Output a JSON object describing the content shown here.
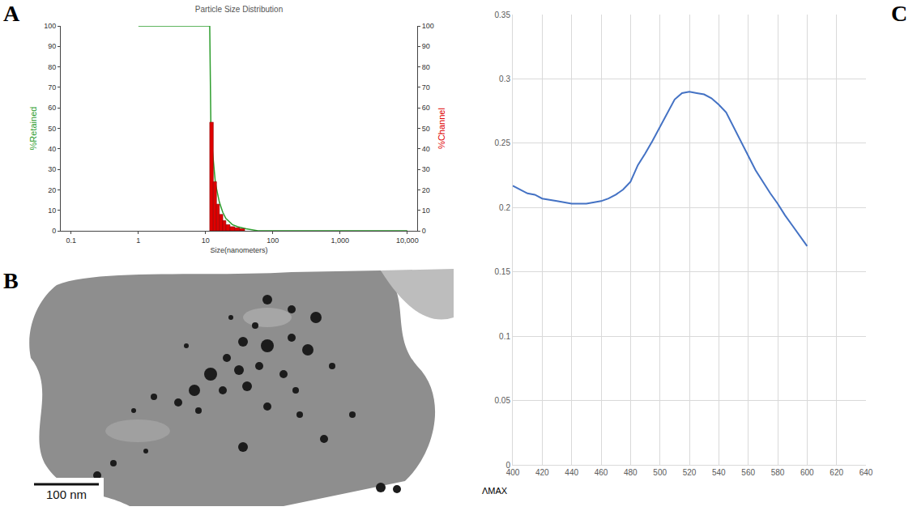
{
  "chart_data": [
    {
      "panel_label": "A",
      "type": "histogram",
      "title": "Particle Size Distribution",
      "x_label": "Size(nanometers)",
      "y_label": "%Retained",
      "y2_label": "%Channel",
      "log": "x",
      "grid": false,
      "xlim": [
        0.07,
        14000
      ],
      "xticks": [
        0.1,
        1,
        10,
        100,
        {
          "value": 1000,
          "label": "1,000"
        },
        {
          "value": 10000,
          "label": "10,000"
        }
      ],
      "ylim": [
        0,
        100
      ],
      "yticks": [
        0,
        10,
        20,
        30,
        40,
        50,
        60,
        70,
        80,
        90,
        100
      ],
      "y2lim": [
        0,
        100
      ],
      "y2ticks": [
        0,
        10,
        20,
        30,
        40,
        50,
        60,
        70,
        80,
        90,
        100
      ],
      "series": [
        {
          "name": "%Retained",
          "type": "line",
          "color": "#2e9e2e",
          "x": [
            1,
            11.5,
            12,
            13,
            14,
            16,
            18,
            20,
            25,
            30,
            40,
            60,
            100,
            1000,
            10000
          ],
          "values": [
            100,
            100,
            47,
            33,
            23,
            14,
            9,
            6,
            3,
            2,
            1,
            0,
            0,
            0,
            0
          ]
        },
        {
          "name": "%Channel",
          "type": "histogram",
          "axis": "y2",
          "color": "#e00000",
          "bins": [
            11.5,
            13,
            14.5,
            16,
            18,
            20,
            23,
            27,
            32,
            38
          ],
          "values": [
            53,
            24,
            13,
            8,
            5,
            3,
            2,
            1.5,
            1
          ]
        }
      ]
    },
    {
      "panel_label": "B",
      "type": "image",
      "annotations": [
        "100 nm"
      ]
    },
    {
      "panel_label": "C",
      "type": "line",
      "x_label": "ΛMAX",
      "grid": true,
      "color": "#4472c4",
      "xlim": [
        400,
        640
      ],
      "xticks": [
        400,
        420,
        440,
        460,
        480,
        500,
        520,
        540,
        560,
        580,
        600,
        620,
        640
      ],
      "ylim": [
        0,
        0.35
      ],
      "yticks": [
        0,
        0.05,
        0.1,
        0.15,
        0.2,
        0.25,
        0.3,
        0.35
      ],
      "x": [
        400,
        405,
        410,
        415,
        420,
        430,
        440,
        450,
        460,
        465,
        470,
        475,
        480,
        485,
        490,
        495,
        500,
        505,
        510,
        515,
        520,
        525,
        530,
        535,
        540,
        545,
        550,
        555,
        560,
        565,
        570,
        575,
        580,
        585,
        590,
        595,
        600
      ],
      "values": [
        0.217,
        0.214,
        0.211,
        0.21,
        0.207,
        0.205,
        0.203,
        0.203,
        0.205,
        0.207,
        0.21,
        0.214,
        0.22,
        0.233,
        0.242,
        0.252,
        0.263,
        0.274,
        0.284,
        0.289,
        0.29,
        0.289,
        0.288,
        0.285,
        0.28,
        0.274,
        0.263,
        0.251,
        0.24,
        0.229,
        0.22,
        0.211,
        0.203,
        0.194,
        0.186,
        0.178,
        0.17
      ]
    }
  ]
}
